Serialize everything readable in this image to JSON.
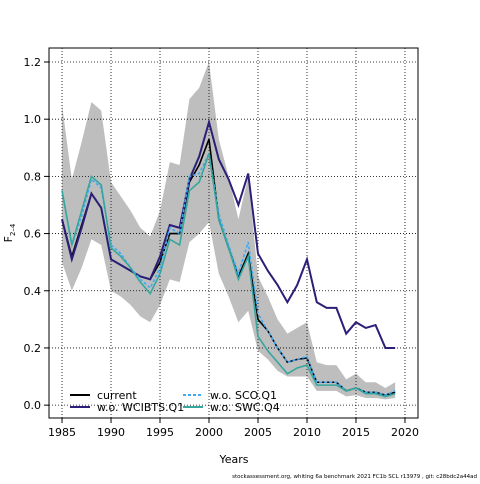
{
  "chart_data": {
    "type": "line",
    "xlabel": "Years",
    "ylabel": {
      "main": "F",
      "sub": "2–4"
    },
    "footer": "stockassessment.org, whiting 6a benchmark 2021 FC1b SCL r13979 , git: c28bdc2a44ad",
    "x": [
      1985,
      1986,
      1987,
      1988,
      1989,
      1990,
      1991,
      1992,
      1993,
      1994,
      1995,
      1996,
      1997,
      1998,
      1999,
      2000,
      2001,
      2002,
      2003,
      2004,
      2005,
      2006,
      2007,
      2008,
      2009,
      2010,
      2011,
      2012,
      2013,
      2014,
      2015,
      2016,
      2017,
      2018,
      2019
    ],
    "band": {
      "color": "#bebebe",
      "upper": [
        1.05,
        0.79,
        0.92,
        1.06,
        1.03,
        0.78,
        0.73,
        0.68,
        0.62,
        0.59,
        0.68,
        0.85,
        0.84,
        1.07,
        1.11,
        1.2,
        0.93,
        0.8,
        0.65,
        0.8,
        0.45,
        0.38,
        0.3,
        0.25,
        0.27,
        0.29,
        0.15,
        0.14,
        0.14,
        0.09,
        0.11,
        0.08,
        0.08,
        0.06,
        0.08
      ],
      "lower": [
        0.5,
        0.4,
        0.48,
        0.58,
        0.56,
        0.4,
        0.38,
        0.35,
        0.31,
        0.29,
        0.35,
        0.44,
        0.43,
        0.57,
        0.6,
        0.64,
        0.46,
        0.38,
        0.29,
        0.33,
        0.19,
        0.16,
        0.12,
        0.1,
        0.1,
        0.1,
        0.05,
        0.05,
        0.05,
        0.03,
        0.035,
        0.025,
        0.025,
        0.02,
        0.025
      ]
    },
    "series": [
      {
        "name": "current",
        "color": "#000000",
        "dashed": false,
        "values": [
          0.65,
          0.52,
          0.63,
          0.74,
          0.69,
          0.51,
          0.49,
          0.47,
          0.45,
          0.44,
          0.5,
          0.6,
          0.6,
          0.78,
          0.84,
          0.93,
          0.65,
          0.55,
          0.45,
          0.53,
          0.3,
          0.26,
          0.2,
          0.15,
          0.16,
          0.165,
          0.08,
          0.08,
          0.08,
          0.05,
          0.06,
          0.045,
          0.045,
          0.035,
          0.045
        ]
      },
      {
        "name": "w.o. WCIBTS.Q1",
        "color": "#2b1f78",
        "dashed": false,
        "values": [
          0.65,
          0.51,
          0.62,
          0.74,
          0.69,
          0.51,
          0.49,
          0.47,
          0.45,
          0.44,
          0.52,
          0.63,
          0.62,
          0.79,
          0.87,
          0.99,
          0.86,
          0.79,
          0.7,
          0.81,
          0.53,
          0.47,
          0.42,
          0.36,
          0.42,
          0.51,
          0.36,
          0.34,
          0.34,
          0.25,
          0.29,
          0.27,
          0.28,
          0.2,
          0.2
        ]
      },
      {
        "name": "w.o. SCO.Q1",
        "color": "#3fa9f5",
        "dashed": true,
        "values": [
          0.75,
          0.56,
          0.66,
          0.79,
          0.76,
          0.56,
          0.53,
          0.48,
          0.44,
          0.41,
          0.48,
          0.62,
          0.6,
          0.8,
          0.81,
          0.88,
          0.67,
          0.56,
          0.46,
          0.57,
          0.32,
          0.26,
          0.2,
          0.15,
          0.16,
          0.17,
          0.08,
          0.08,
          0.08,
          0.05,
          0.06,
          0.045,
          0.045,
          0.035,
          0.05
        ]
      },
      {
        "name": "w.o. SWC.Q4",
        "color": "#35a79c",
        "dashed": false,
        "values": [
          0.75,
          0.56,
          0.68,
          0.8,
          0.77,
          0.55,
          0.52,
          0.48,
          0.43,
          0.39,
          0.46,
          0.58,
          0.56,
          0.75,
          0.78,
          0.88,
          0.65,
          0.55,
          0.44,
          0.52,
          0.24,
          0.19,
          0.15,
          0.11,
          0.13,
          0.14,
          0.07,
          0.07,
          0.07,
          0.05,
          0.06,
          0.04,
          0.04,
          0.03,
          0.04
        ]
      }
    ],
    "xlim": [
      1983.67,
      2021.33
    ],
    "ylim": [
      -0.045,
      1.249
    ],
    "xticks": [
      1985,
      1990,
      1995,
      2000,
      2005,
      2010,
      2015,
      2020
    ],
    "yticks": [
      {
        "value": 0,
        "label": "0.0"
      },
      0.2,
      0.4,
      0.6,
      0.8,
      {
        "value": 1,
        "label": "1.0"
      },
      1.2
    ],
    "grid": true,
    "legend": "bottom-left"
  }
}
